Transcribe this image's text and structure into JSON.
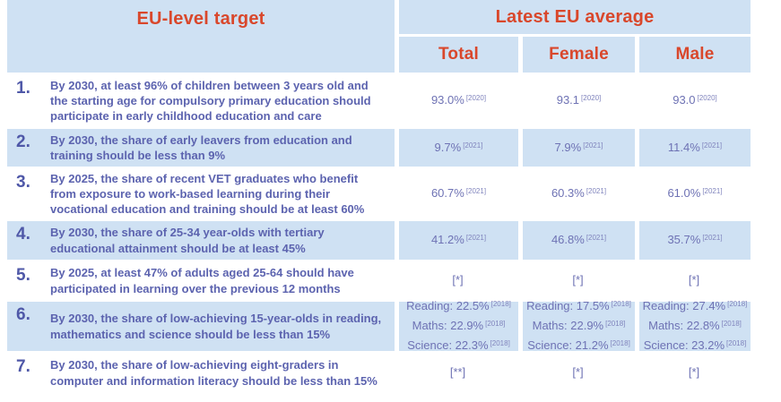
{
  "header": {
    "target_col": "EU-level target",
    "average_col": "Latest EU average",
    "sub_columns": {
      "total": "Total",
      "female": "Female",
      "male": "Male"
    }
  },
  "colors": {
    "cell_blue": "#cfe1f3",
    "header_red": "#d9472b",
    "body_purple": "#5c63af",
    "value_purple": "#6e72b4"
  },
  "rows": [
    {
      "number": "1.",
      "target": "By 2030, at least 96% of children between 3 years old and the starting age for compulsory primary education should participate in early childhood education and care",
      "total": {
        "lines": [
          {
            "value": "93.0%",
            "sup": "[2020]"
          }
        ]
      },
      "female": {
        "lines": [
          {
            "value": "93.1",
            "sup": "[2020]"
          }
        ]
      },
      "male": {
        "lines": [
          {
            "value": "93.0",
            "sup": "[2020]"
          }
        ]
      }
    },
    {
      "number": "2.",
      "target": "By 2030, the share of early leavers from education and training should be less than 9%",
      "total": {
        "lines": [
          {
            "value": "9.7%",
            "sup": "[2021]"
          }
        ]
      },
      "female": {
        "lines": [
          {
            "value": "7.9%",
            "sup": "[2021]"
          }
        ]
      },
      "male": {
        "lines": [
          {
            "value": "11.4%",
            "sup": "[2021]"
          }
        ]
      }
    },
    {
      "number": "3.",
      "target": "By 2025, the share of recent VET graduates who benefit from exposure to work-based learning during their vocational education and training should be at least 60%",
      "total": {
        "lines": [
          {
            "value": "60.7%",
            "sup": "[2021]"
          }
        ]
      },
      "female": {
        "lines": [
          {
            "value": "60.3%",
            "sup": "[2021]"
          }
        ]
      },
      "male": {
        "lines": [
          {
            "value": "61.0%",
            "sup": "[2021]"
          }
        ]
      }
    },
    {
      "number": "4.",
      "target": "By 2030, the share of 25-34 year-olds with tertiary educational attainment should be at least 45%",
      "total": {
        "lines": [
          {
            "value": "41.2%",
            "sup": "[2021]"
          }
        ]
      },
      "female": {
        "lines": [
          {
            "value": "46.8%",
            "sup": "[2021]"
          }
        ]
      },
      "male": {
        "lines": [
          {
            "value": "35.7%",
            "sup": "[2021]"
          }
        ]
      }
    },
    {
      "number": "5.",
      "target": "By 2025, at least 47% of adults aged 25-64 should have participated in learning over the previous 12 months",
      "total": {
        "lines": [
          {
            "value": "[*]",
            "sup": ""
          }
        ]
      },
      "female": {
        "lines": [
          {
            "value": "[*]",
            "sup": ""
          }
        ]
      },
      "male": {
        "lines": [
          {
            "value": "[*]",
            "sup": ""
          }
        ]
      }
    },
    {
      "number": "6.",
      "target": "By 2030, the share of low-achieving 15-year-olds in reading, mathematics and science should be less than 15%",
      "total": {
        "lines": [
          {
            "value": "Reading: 22.5%",
            "sup": "[2018]"
          },
          {
            "value": "Maths: 22.9%",
            "sup": "[2018]"
          },
          {
            "value": "Science: 22.3%",
            "sup": "[2018]"
          }
        ]
      },
      "female": {
        "lines": [
          {
            "value": "Reading: 17.5%",
            "sup": "[2018]"
          },
          {
            "value": "Maths: 22.9%",
            "sup": "[2018]"
          },
          {
            "value": "Science: 21.2%",
            "sup": "[2018]"
          }
        ]
      },
      "male": {
        "lines": [
          {
            "value": "Reading: 27.4%",
            "sup": "[2018]"
          },
          {
            "value": "Maths: 22.8%",
            "sup": "[2018]"
          },
          {
            "value": "Science: 23.2%",
            "sup": "[2018]"
          }
        ]
      }
    },
    {
      "number": "7.",
      "target": "By 2030, the share of low-achieving eight-graders in computer and information literacy should be less than 15%",
      "total": {
        "lines": [
          {
            "value": "[**]",
            "sup": ""
          }
        ]
      },
      "female": {
        "lines": [
          {
            "value": "[*]",
            "sup": ""
          }
        ]
      },
      "male": {
        "lines": [
          {
            "value": "[*]",
            "sup": ""
          }
        ]
      }
    }
  ]
}
